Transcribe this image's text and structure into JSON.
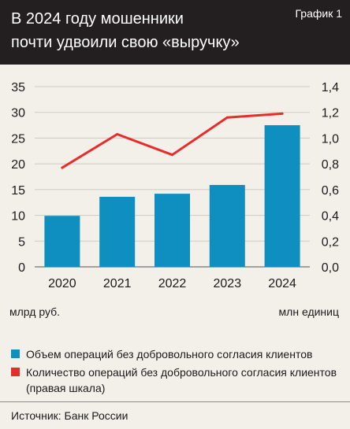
{
  "header": {
    "title_line1": "В 2024 году мошенники",
    "title_line2": "почти удвоили свою «выручку»",
    "graph_label": "График 1"
  },
  "chart_data": {
    "type": "bar+line",
    "categories": [
      "2020",
      "2021",
      "2022",
      "2023",
      "2024"
    ],
    "series": [
      {
        "name": "Объем операций без добровольного согласия клиентов",
        "type": "bar",
        "axis": "left",
        "values": [
          9.9,
          13.6,
          14.2,
          15.9,
          27.5
        ]
      },
      {
        "name": "Количество операций без добровольного согласия клиентов (правая шкала)",
        "type": "line",
        "axis": "right",
        "values": [
          0.77,
          1.03,
          0.87,
          1.16,
          1.19
        ]
      }
    ],
    "left_axis": {
      "label": "млрд руб.",
      "min": 0,
      "max": 35,
      "ticks": [
        "0",
        "5",
        "10",
        "15",
        "20",
        "25",
        "30",
        "35"
      ]
    },
    "right_axis": {
      "label": "млн единиц",
      "min": 0,
      "max": 1.4,
      "ticks": [
        "0,0",
        "0,2",
        "0,4",
        "0,6",
        "0,8",
        "1,0",
        "1,2",
        "1,4"
      ]
    },
    "colors": {
      "bar": "#0f8fbf",
      "line": "#e52d2d",
      "grid": "#cfcac2"
    },
    "grid": true
  },
  "legend": [
    {
      "label": "Объем операций без добровольного согласия клиентов",
      "color": "#0f8fbf"
    },
    {
      "label": "Количество операций без добровольного согласия клиентов (правая шкала)",
      "color": "#e52d2d"
    }
  ],
  "source": "Источник: Банк России"
}
